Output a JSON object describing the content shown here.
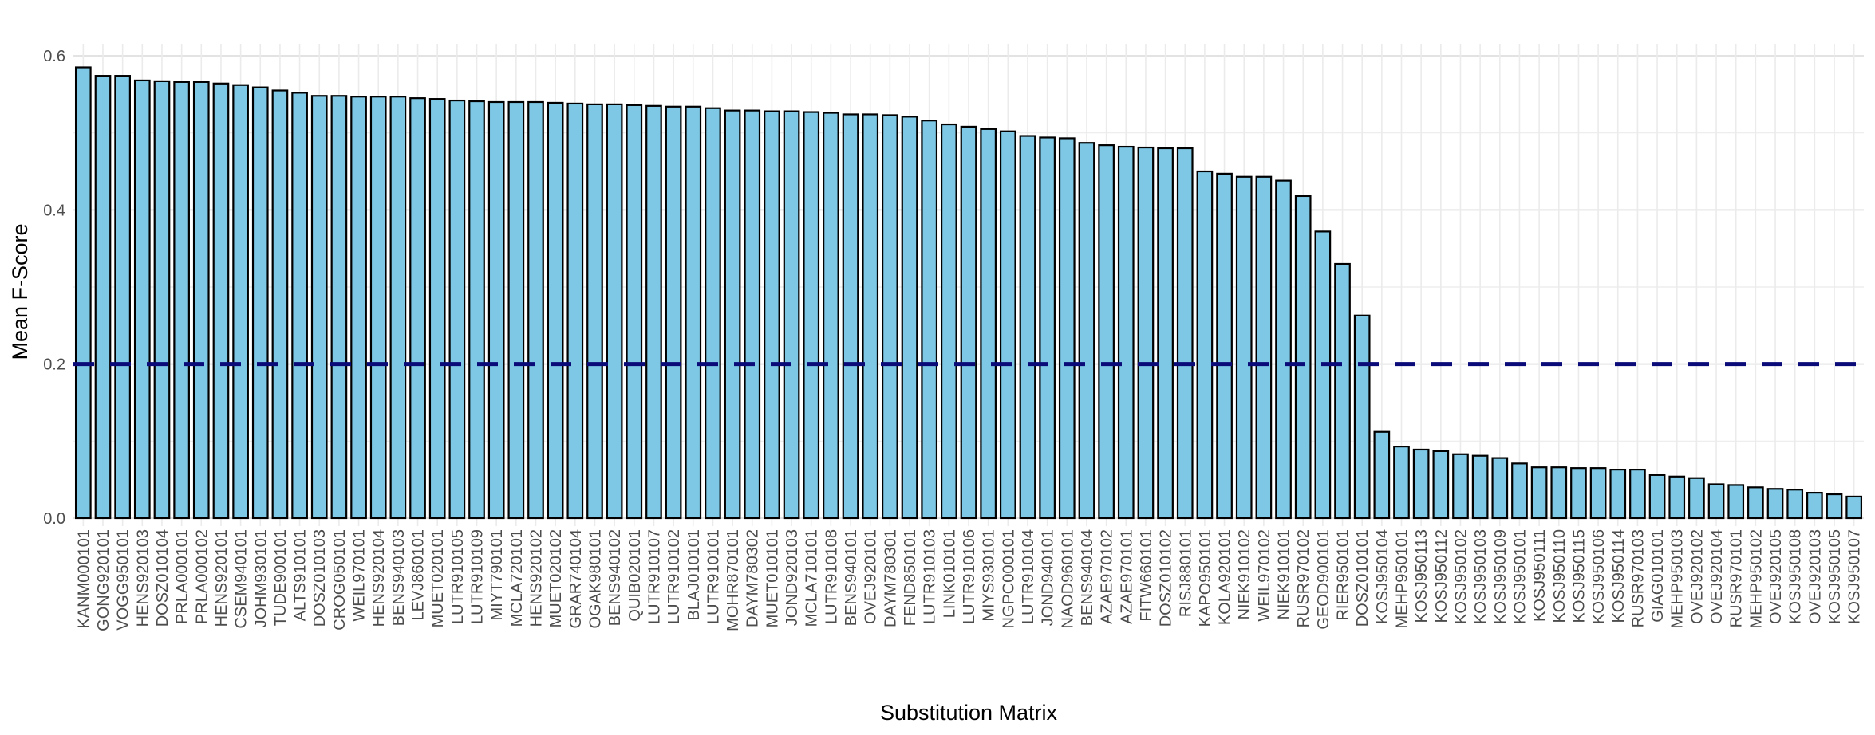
{
  "chart_data": {
    "type": "bar",
    "xlabel": "Substitution Matrix",
    "ylabel": "Mean F-Score",
    "ylim": [
      0,
      0.61
    ],
    "yticks": [
      0.0,
      0.2,
      0.4,
      0.6
    ],
    "ytick_labels": [
      "0.0",
      "0.2",
      "0.4",
      "0.6"
    ],
    "grid": true,
    "bar_color": "#7EC8E6",
    "bar_edge_color": "#000000",
    "reference_line": {
      "value": 0.2,
      "style": "dashed",
      "color": "#0A0A78"
    },
    "categories": [
      "KANM000101",
      "GONG920101",
      "VOGG950101",
      "HENS920103",
      "DOSZ010104",
      "PRLA000101",
      "PRLA000102",
      "HENS920101",
      "CSEM940101",
      "JOHM930101",
      "TUDE900101",
      "ALTS910101",
      "DOSZ010103",
      "CROG050101",
      "WEIL970101",
      "HENS920104",
      "BENS940103",
      "LEVJ860101",
      "MUET020101",
      "LUTR910105",
      "LUTR910109",
      "MIYT790101",
      "MCLA720101",
      "HENS920102",
      "MUET020102",
      "GRAR740104",
      "OGAK980101",
      "BENS940102",
      "QUIB020101",
      "LUTR910107",
      "LUTR910102",
      "BLAJ010101",
      "LUTR910101",
      "MOHR870101",
      "DAYM780302",
      "MUET010101",
      "JOND920103",
      "MCLA710101",
      "LUTR910108",
      "BENS940101",
      "OVEJ920101",
      "DAYM780301",
      "FEND850101",
      "LUTR910103",
      "LINK010101",
      "LUTR910106",
      "MIYS930101",
      "NGPC000101",
      "LUTR910104",
      "JOND940101",
      "NAOD960101",
      "BENS940104",
      "AZAE970102",
      "AZAE970101",
      "FITW660101",
      "DOSZ010102",
      "RISJ880101",
      "KAPO950101",
      "KOLA920101",
      "NIEK910102",
      "WEIL970102",
      "NIEK910101",
      "RUSR970102",
      "GEOD900101",
      "RIER950101",
      "DOSZ010101",
      "KOSJ950104",
      "MEHP950101",
      "KOSJ950113",
      "KOSJ950112",
      "KOSJ950102",
      "KOSJ950103",
      "KOSJ950109",
      "KOSJ950101",
      "KOSJ950111",
      "KOSJ950110",
      "KOSJ950115",
      "KOSJ950106",
      "KOSJ950114",
      "RUSR970103",
      "GIAG010101",
      "MEHP950103",
      "OVEJ920102",
      "OVEJ920104",
      "RUSR970101",
      "MEHP950102",
      "OVEJ920105",
      "KOSJ950108",
      "OVEJ920103",
      "KOSJ950105",
      "KOSJ950107"
    ],
    "values": [
      0.585,
      0.574,
      0.574,
      0.568,
      0.567,
      0.566,
      0.566,
      0.564,
      0.562,
      0.559,
      0.555,
      0.552,
      0.548,
      0.548,
      0.547,
      0.547,
      0.547,
      0.545,
      0.544,
      0.542,
      0.541,
      0.54,
      0.54,
      0.54,
      0.539,
      0.538,
      0.537,
      0.537,
      0.536,
      0.535,
      0.534,
      0.534,
      0.532,
      0.529,
      0.529,
      0.528,
      0.528,
      0.527,
      0.526,
      0.524,
      0.524,
      0.523,
      0.521,
      0.516,
      0.511,
      0.508,
      0.505,
      0.502,
      0.496,
      0.494,
      0.493,
      0.487,
      0.484,
      0.482,
      0.481,
      0.48,
      0.48,
      0.45,
      0.447,
      0.443,
      0.443,
      0.438,
      0.418,
      0.372,
      0.33,
      0.263,
      0.112,
      0.093,
      0.089,
      0.087,
      0.083,
      0.081,
      0.078,
      0.071,
      0.066,
      0.066,
      0.065,
      0.065,
      0.063,
      0.063,
      0.056,
      0.054,
      0.052,
      0.044,
      0.043,
      0.04,
      0.038,
      0.037,
      0.033,
      0.031,
      0.028
    ]
  }
}
